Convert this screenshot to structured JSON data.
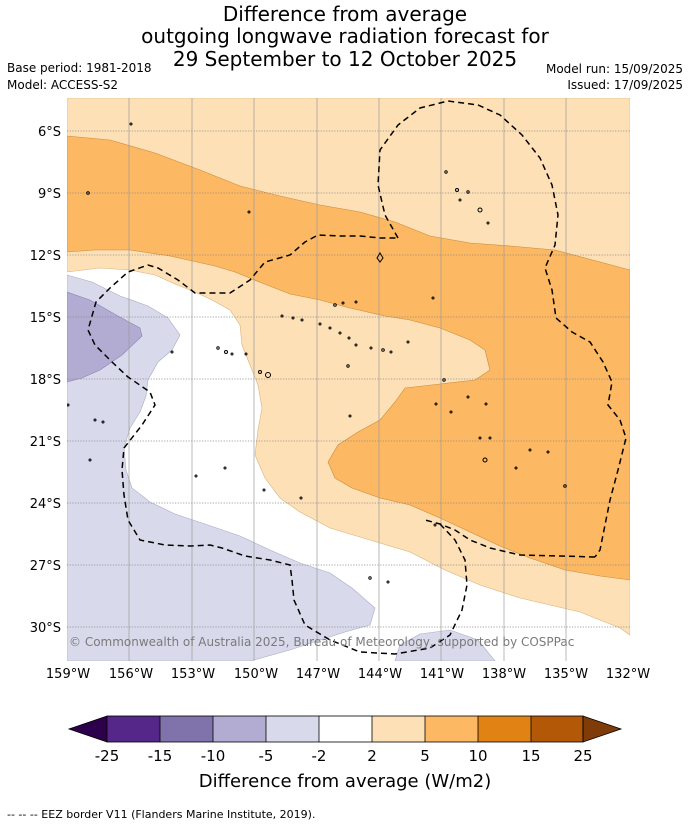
{
  "title": {
    "line1": "Difference from average",
    "line2": "outgoing longwave radiation forecast for",
    "line3": "29 September to 12 October 2025"
  },
  "base_period": "Base period: 1981-2018",
  "model": "Model: ACCESS-S2",
  "model_run": "Model run: 15/09/2025",
  "issued": "Issued: 17/09/2025",
  "copyright": "© Commonwealth of Australia 2025, Bureau of Meteorology, supported by COSPPac",
  "lat_labels": [
    "6°S",
    "9°S",
    "12°S",
    "15°S",
    "18°S",
    "21°S",
    "24°S",
    "27°S",
    "30°S"
  ],
  "lon_labels": [
    "159°W",
    "156°W",
    "153°W",
    "150°W",
    "147°W",
    "144°W",
    "141°W",
    "138°W",
    "135°W",
    "132°W"
  ],
  "colorbar": {
    "title": "Difference from average (W/m2)",
    "ticks": [
      "-25",
      "-15",
      "-10",
      "-5",
      "-2",
      "2",
      "5",
      "10",
      "15",
      "25"
    ],
    "colors": {
      "lt_-25": "#2d004b",
      "-25_-15": "#542788",
      "-15_-10": "#8073ac",
      "-10_-5": "#b2abd2",
      "-5_-2": "#d8daeb",
      "-2_2": "#ffffff",
      "2_5": "#fee0b6",
      "5_10": "#fdb863",
      "10_15": "#e08214",
      "15_25": "#b35806",
      "gt_25": "#7f3b08"
    }
  },
  "footer": "--  --  -- EEZ border V11 (Flanders Marine Institute, 2019)."
}
